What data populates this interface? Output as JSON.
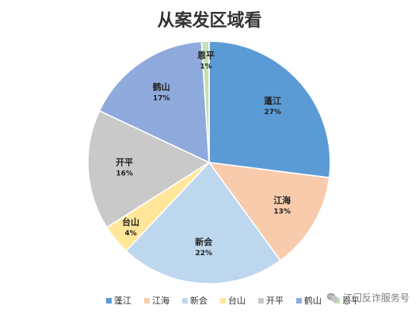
{
  "chart_data": {
    "type": "pie",
    "title": "从案发区域看",
    "categories": [
      "蓬江",
      "江海",
      "新会",
      "台山",
      "开平",
      "鹤山",
      "恩平"
    ],
    "values": [
      27,
      13,
      22,
      4,
      16,
      17,
      1
    ],
    "value_labels": [
      "27%",
      "13%",
      "22%",
      "4%",
      "16%",
      "17%",
      "1%"
    ],
    "colors": [
      "#5b9bd5",
      "#f8cbad",
      "#bdd7ee",
      "#ffe699",
      "#c9c9c9",
      "#8faadc",
      "#c5e0b4"
    ],
    "start_angle_deg": 0,
    "direction": "clockwise",
    "legend_position": "bottom"
  },
  "watermark": {
    "icon": "wechat-icon",
    "text": "江门反诈服务号"
  }
}
